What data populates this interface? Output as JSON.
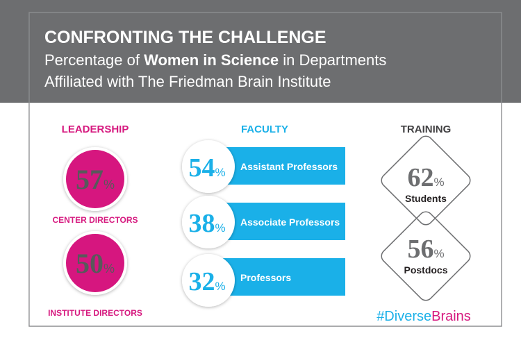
{
  "header": {
    "title": "CONFRONTING THE CHALLENGE",
    "subtitle_parts": [
      "Percentage of ",
      "Women in Science",
      " in Departments"
    ],
    "subtitle_line2": "Affiliated with The Friedman Brain Institute"
  },
  "leadership": {
    "heading": "LEADERSHIP",
    "items": [
      {
        "value": 57,
        "unit": "%",
        "label": "CENTER DIRECTORS"
      },
      {
        "value": 50,
        "unit": "%",
        "label": "INSTITUTE DIRECTORS"
      }
    ]
  },
  "faculty": {
    "heading": "FACULTY",
    "items": [
      {
        "value": 54,
        "unit": "%",
        "label": "Assistant Professors"
      },
      {
        "value": 38,
        "unit": "%",
        "label": "Associate Professors"
      },
      {
        "value": 32,
        "unit": "%",
        "label": "Professors"
      }
    ]
  },
  "training": {
    "heading": "TRAINING",
    "items": [
      {
        "value": 62,
        "unit": "%",
        "label": "Students"
      },
      {
        "value": 56,
        "unit": "%",
        "label": "Postdocs"
      }
    ]
  },
  "hashtag": [
    "#Diverse",
    "Brains"
  ]
}
